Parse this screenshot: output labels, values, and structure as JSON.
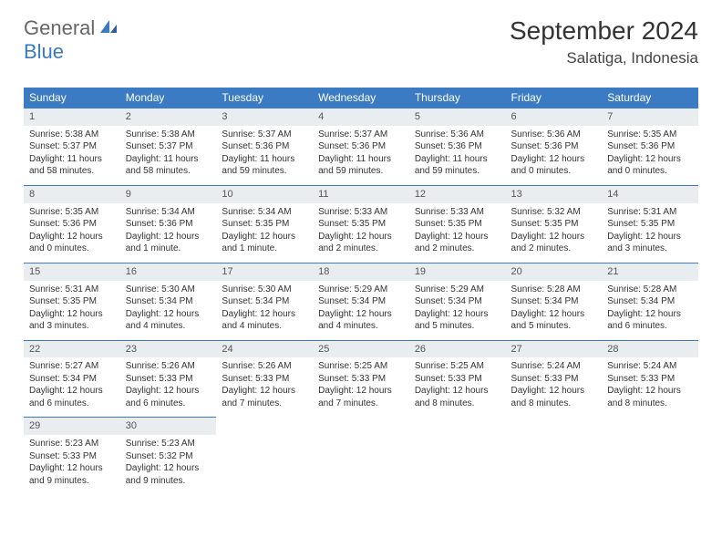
{
  "logo": {
    "general": "General",
    "blue": "Blue"
  },
  "title": {
    "month_year": "September 2024",
    "location": "Salatiga, Indonesia"
  },
  "colors": {
    "header_bg": "#3a7bc4",
    "daynum_bg": "#e9edf0",
    "text": "#333333",
    "logo_blue": "#3a7bc4"
  },
  "weekdays": [
    "Sunday",
    "Monday",
    "Tuesday",
    "Wednesday",
    "Thursday",
    "Friday",
    "Saturday"
  ],
  "weeks": [
    [
      {
        "n": "1",
        "sr": "Sunrise: 5:38 AM",
        "ss": "Sunset: 5:37 PM",
        "dl": "Daylight: 11 hours and 58 minutes."
      },
      {
        "n": "2",
        "sr": "Sunrise: 5:38 AM",
        "ss": "Sunset: 5:37 PM",
        "dl": "Daylight: 11 hours and 58 minutes."
      },
      {
        "n": "3",
        "sr": "Sunrise: 5:37 AM",
        "ss": "Sunset: 5:36 PM",
        "dl": "Daylight: 11 hours and 59 minutes."
      },
      {
        "n": "4",
        "sr": "Sunrise: 5:37 AM",
        "ss": "Sunset: 5:36 PM",
        "dl": "Daylight: 11 hours and 59 minutes."
      },
      {
        "n": "5",
        "sr": "Sunrise: 5:36 AM",
        "ss": "Sunset: 5:36 PM",
        "dl": "Daylight: 11 hours and 59 minutes."
      },
      {
        "n": "6",
        "sr": "Sunrise: 5:36 AM",
        "ss": "Sunset: 5:36 PM",
        "dl": "Daylight: 12 hours and 0 minutes."
      },
      {
        "n": "7",
        "sr": "Sunrise: 5:35 AM",
        "ss": "Sunset: 5:36 PM",
        "dl": "Daylight: 12 hours and 0 minutes."
      }
    ],
    [
      {
        "n": "8",
        "sr": "Sunrise: 5:35 AM",
        "ss": "Sunset: 5:36 PM",
        "dl": "Daylight: 12 hours and 0 minutes."
      },
      {
        "n": "9",
        "sr": "Sunrise: 5:34 AM",
        "ss": "Sunset: 5:36 PM",
        "dl": "Daylight: 12 hours and 1 minute."
      },
      {
        "n": "10",
        "sr": "Sunrise: 5:34 AM",
        "ss": "Sunset: 5:35 PM",
        "dl": "Daylight: 12 hours and 1 minute."
      },
      {
        "n": "11",
        "sr": "Sunrise: 5:33 AM",
        "ss": "Sunset: 5:35 PM",
        "dl": "Daylight: 12 hours and 2 minutes."
      },
      {
        "n": "12",
        "sr": "Sunrise: 5:33 AM",
        "ss": "Sunset: 5:35 PM",
        "dl": "Daylight: 12 hours and 2 minutes."
      },
      {
        "n": "13",
        "sr": "Sunrise: 5:32 AM",
        "ss": "Sunset: 5:35 PM",
        "dl": "Daylight: 12 hours and 2 minutes."
      },
      {
        "n": "14",
        "sr": "Sunrise: 5:31 AM",
        "ss": "Sunset: 5:35 PM",
        "dl": "Daylight: 12 hours and 3 minutes."
      }
    ],
    [
      {
        "n": "15",
        "sr": "Sunrise: 5:31 AM",
        "ss": "Sunset: 5:35 PM",
        "dl": "Daylight: 12 hours and 3 minutes."
      },
      {
        "n": "16",
        "sr": "Sunrise: 5:30 AM",
        "ss": "Sunset: 5:34 PM",
        "dl": "Daylight: 12 hours and 4 minutes."
      },
      {
        "n": "17",
        "sr": "Sunrise: 5:30 AM",
        "ss": "Sunset: 5:34 PM",
        "dl": "Daylight: 12 hours and 4 minutes."
      },
      {
        "n": "18",
        "sr": "Sunrise: 5:29 AM",
        "ss": "Sunset: 5:34 PM",
        "dl": "Daylight: 12 hours and 4 minutes."
      },
      {
        "n": "19",
        "sr": "Sunrise: 5:29 AM",
        "ss": "Sunset: 5:34 PM",
        "dl": "Daylight: 12 hours and 5 minutes."
      },
      {
        "n": "20",
        "sr": "Sunrise: 5:28 AM",
        "ss": "Sunset: 5:34 PM",
        "dl": "Daylight: 12 hours and 5 minutes."
      },
      {
        "n": "21",
        "sr": "Sunrise: 5:28 AM",
        "ss": "Sunset: 5:34 PM",
        "dl": "Daylight: 12 hours and 6 minutes."
      }
    ],
    [
      {
        "n": "22",
        "sr": "Sunrise: 5:27 AM",
        "ss": "Sunset: 5:34 PM",
        "dl": "Daylight: 12 hours and 6 minutes."
      },
      {
        "n": "23",
        "sr": "Sunrise: 5:26 AM",
        "ss": "Sunset: 5:33 PM",
        "dl": "Daylight: 12 hours and 6 minutes."
      },
      {
        "n": "24",
        "sr": "Sunrise: 5:26 AM",
        "ss": "Sunset: 5:33 PM",
        "dl": "Daylight: 12 hours and 7 minutes."
      },
      {
        "n": "25",
        "sr": "Sunrise: 5:25 AM",
        "ss": "Sunset: 5:33 PM",
        "dl": "Daylight: 12 hours and 7 minutes."
      },
      {
        "n": "26",
        "sr": "Sunrise: 5:25 AM",
        "ss": "Sunset: 5:33 PM",
        "dl": "Daylight: 12 hours and 8 minutes."
      },
      {
        "n": "27",
        "sr": "Sunrise: 5:24 AM",
        "ss": "Sunset: 5:33 PM",
        "dl": "Daylight: 12 hours and 8 minutes."
      },
      {
        "n": "28",
        "sr": "Sunrise: 5:24 AM",
        "ss": "Sunset: 5:33 PM",
        "dl": "Daylight: 12 hours and 8 minutes."
      }
    ],
    [
      {
        "n": "29",
        "sr": "Sunrise: 5:23 AM",
        "ss": "Sunset: 5:33 PM",
        "dl": "Daylight: 12 hours and 9 minutes."
      },
      {
        "n": "30",
        "sr": "Sunrise: 5:23 AM",
        "ss": "Sunset: 5:32 PM",
        "dl": "Daylight: 12 hours and 9 minutes."
      },
      null,
      null,
      null,
      null,
      null
    ]
  ]
}
